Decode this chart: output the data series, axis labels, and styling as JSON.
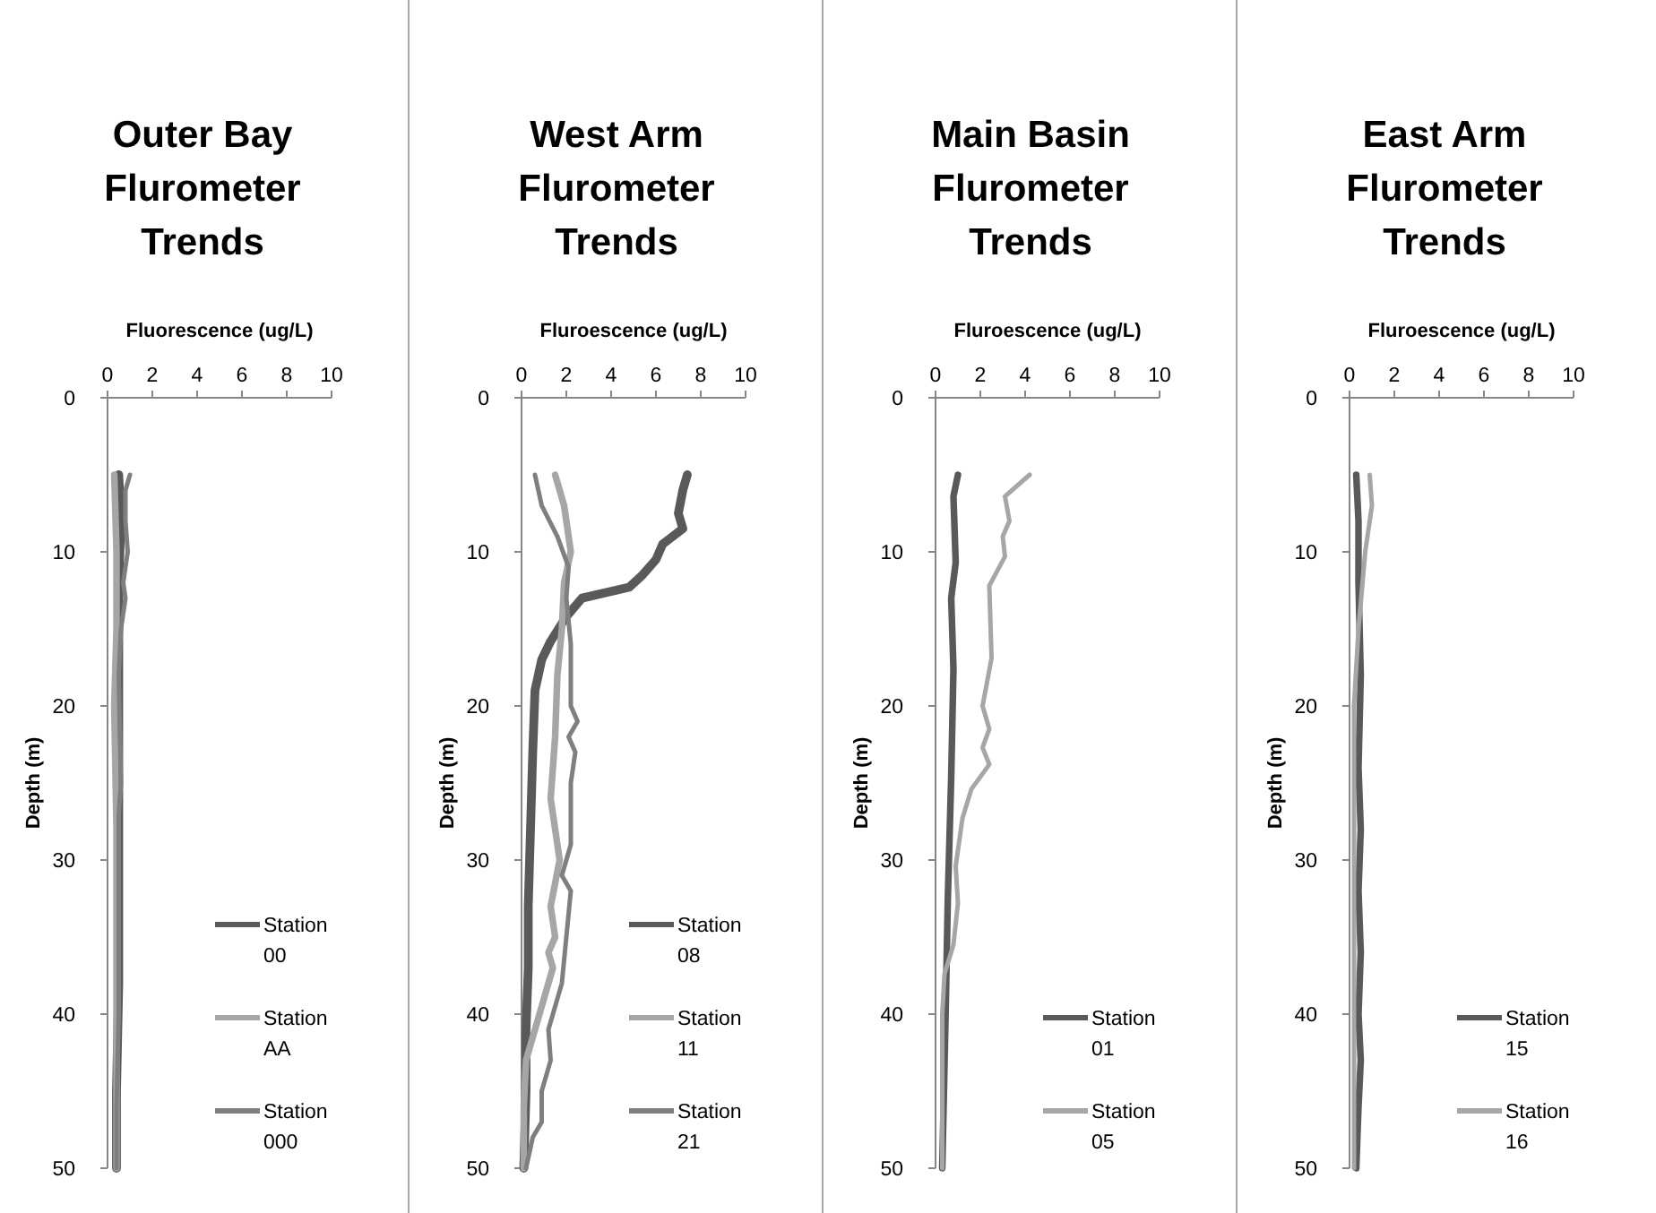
{
  "chart_data": [
    {
      "type": "line",
      "title": "Outer Bay Flurometer Trends",
      "xlabel": "Fluorescence (ug/L)",
      "ylabel": "Depth (m)",
      "xlim": [
        0,
        10
      ],
      "xticks": [
        0,
        2,
        4,
        6,
        8,
        10
      ],
      "ylim": [
        50,
        0
      ],
      "yticks": [
        0,
        10,
        20,
        30,
        40,
        50
      ],
      "legend": "bottom right",
      "series": [
        {
          "name": "Station 00",
          "color": "#595959",
          "x": [
            0.5,
            0.6,
            0.5,
            0.5,
            0.5,
            0.5,
            0.5,
            0.4,
            0.4
          ],
          "values": [
            5,
            8,
            12,
            18,
            25,
            30,
            38,
            45,
            50
          ]
        },
        {
          "name": "Station AA",
          "color": "#a6a6a6",
          "x": [
            0.3,
            0.4,
            0.4,
            0.3,
            0.4,
            0.4,
            0.4,
            0.4
          ],
          "values": [
            5,
            10,
            15,
            20,
            28,
            35,
            42,
            50
          ]
        },
        {
          "name": "Station 000",
          "color": "#7f7f7f",
          "x": [
            1.0,
            0.8,
            0.8,
            0.9,
            0.7,
            0.8,
            0.6,
            0.5,
            0.6,
            0.5,
            0.5,
            0.5,
            0.4,
            0.4
          ],
          "values": [
            5,
            6,
            8,
            10,
            12,
            13,
            15,
            18,
            25,
            27,
            32,
            40,
            46,
            50
          ]
        }
      ]
    },
    {
      "type": "line",
      "title": "West Arm Flurometer Trends",
      "xlabel": "Fluroescence (ug/L)",
      "ylabel": "Depth (m)",
      "xlim": [
        0,
        10
      ],
      "xticks": [
        0,
        2,
        4,
        6,
        8,
        10
      ],
      "ylim": [
        50,
        0
      ],
      "yticks": [
        0,
        10,
        20,
        30,
        40,
        50
      ],
      "legend": "bottom right",
      "series": [
        {
          "name": "Station 08",
          "color": "#595959",
          "x": [
            7.4,
            7.2,
            7.0,
            7.2,
            6.3,
            6.0,
            5.4,
            4.8,
            2.7,
            2.0,
            1.3,
            0.9,
            0.6,
            0.5,
            0.4,
            0.3,
            0.3,
            0.2,
            0.2,
            0.1
          ],
          "values": [
            5,
            6,
            7.5,
            8.5,
            9.5,
            10.5,
            11.5,
            12.3,
            13,
            14.2,
            15.8,
            17,
            19,
            23,
            28,
            33,
            37,
            41,
            45,
            50
          ]
        },
        {
          "name": "Station 11",
          "color": "#a6a6a6",
          "x": [
            1.5,
            1.9,
            2.2,
            1.9,
            1.8,
            1.6,
            1.5,
            1.3,
            1.6,
            1.7,
            1.3,
            1.5,
            1.2,
            1.4,
            0.8,
            0.2,
            0.1,
            0.1
          ],
          "values": [
            5,
            7,
            10,
            12,
            15,
            18,
            22,
            26,
            29,
            30,
            33,
            35,
            36,
            37,
            40,
            43,
            46,
            50
          ]
        },
        {
          "name": "Station 21",
          "color": "#7f7f7f",
          "x": [
            0.6,
            0.9,
            1.6,
            2.1,
            2.0,
            2.2,
            2.2,
            2.5,
            2.1,
            2.4,
            2.2,
            2.2,
            1.8,
            2.2,
            2.0,
            1.8,
            1.2,
            1.3,
            0.9,
            0.9,
            0.5,
            0.2
          ],
          "values": [
            5,
            7,
            9,
            11,
            13,
            16,
            20,
            21,
            22,
            23,
            25,
            29,
            31,
            32,
            35,
            38,
            41,
            43,
            45,
            47,
            48,
            50
          ]
        }
      ]
    },
    {
      "type": "line",
      "title": "Main Basin Flurometer Trends",
      "xlabel": "Fluroescence (ug/L)",
      "ylabel": "Depth (m)",
      "xlim": [
        0,
        10
      ],
      "xticks": [
        0,
        2,
        4,
        6,
        8,
        10
      ],
      "ylim": [
        50,
        0
      ],
      "yticks": [
        0,
        10,
        20,
        30,
        40,
        50
      ],
      "legend": "bottom right",
      "series": [
        {
          "name": "Station 01",
          "color": "#595959",
          "x": [
            1.0,
            0.8,
            0.9,
            0.7,
            0.8,
            0.7,
            0.55,
            0.45,
            0.3
          ],
          "values": [
            5,
            6.4,
            10.7,
            13,
            17.6,
            24.6,
            32.4,
            40,
            50
          ]
        },
        {
          "name": "Station 05",
          "color": "#a6a6a6",
          "x": [
            4.2,
            3.1,
            3.3,
            3.0,
            3.1,
            2.4,
            2.5,
            2.1,
            2.4,
            2.1,
            2.4,
            1.6,
            1.2,
            0.9,
            1.0,
            0.8,
            0.4,
            0.3,
            0.3
          ],
          "values": [
            5,
            6.4,
            8,
            9,
            10.3,
            12.2,
            16.9,
            20,
            21.5,
            22.7,
            23.8,
            25.4,
            27.3,
            30.4,
            32.8,
            35.5,
            37.4,
            40,
            50
          ]
        }
      ]
    },
    {
      "type": "line",
      "title": "East Arm Flurometer Trends",
      "xlabel": "Fluroescence (ug/L)",
      "ylabel": "Depth (m)",
      "xlim": [
        0,
        10
      ],
      "xticks": [
        0,
        2,
        4,
        6,
        8,
        10
      ],
      "ylim": [
        50,
        0
      ],
      "yticks": [
        0,
        10,
        20,
        30,
        40,
        50
      ],
      "legend": "bottom right",
      "series": [
        {
          "name": "Station 15",
          "color": "#595959",
          "x": [
            0.3,
            0.4,
            0.4,
            0.5,
            0.4,
            0.5,
            0.4,
            0.5,
            0.4,
            0.5,
            0.4,
            0.3
          ],
          "values": [
            5,
            8,
            12,
            18,
            24,
            28,
            32,
            36,
            40,
            43,
            46,
            50
          ]
        },
        {
          "name": "Station 16",
          "color": "#a6a6a6",
          "x": [
            0.9,
            1.0,
            0.7,
            0.4,
            0.2,
            0.2,
            0.2,
            0.2
          ],
          "values": [
            5,
            7,
            10,
            15,
            20,
            30,
            40,
            50
          ]
        }
      ]
    }
  ]
}
